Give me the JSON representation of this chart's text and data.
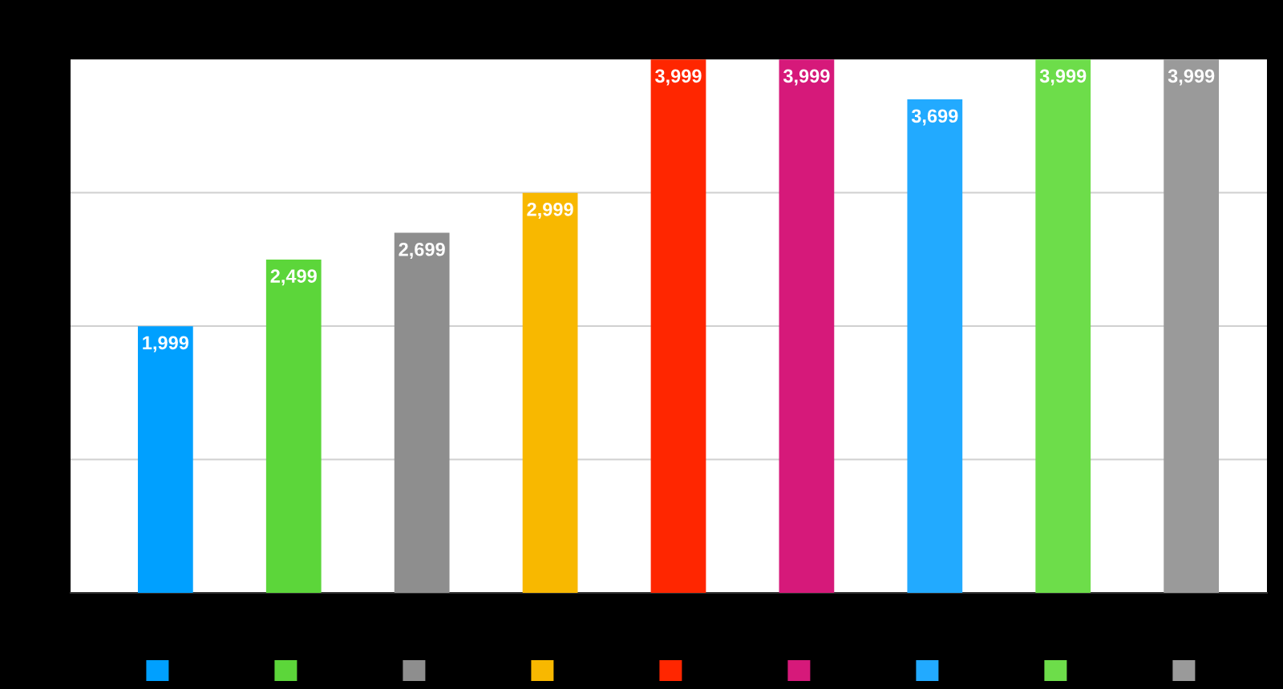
{
  "chart_data": {
    "type": "bar",
    "categories": [
      null,
      null,
      null,
      null,
      null,
      null,
      null,
      null,
      null
    ],
    "values": [
      1999,
      2499,
      2699,
      2999,
      3999,
      3999,
      3699,
      3999,
      3999
    ],
    "colors": [
      "#00a0ff",
      "#5cd63a",
      "#8e8e8e",
      "#f8b800",
      "#ff2600",
      "#d6197a",
      "#22aaff",
      "#6ddd4a",
      "#9a9a9a"
    ],
    "value_labels": [
      "1,999",
      "2,499",
      "2,699",
      "2,999",
      "3,999",
      "3,999",
      "3,699",
      "3,999",
      "3,999"
    ],
    "ylim": [
      0,
      4000
    ],
    "yticks": [
      {
        "value": 0,
        "label": null
      },
      {
        "value": 1000,
        "label": null
      },
      {
        "value": 2000,
        "label": null
      },
      {
        "value": 3000,
        "label": null
      },
      {
        "value": 4000,
        "label": null
      }
    ],
    "grid": "y"
  }
}
